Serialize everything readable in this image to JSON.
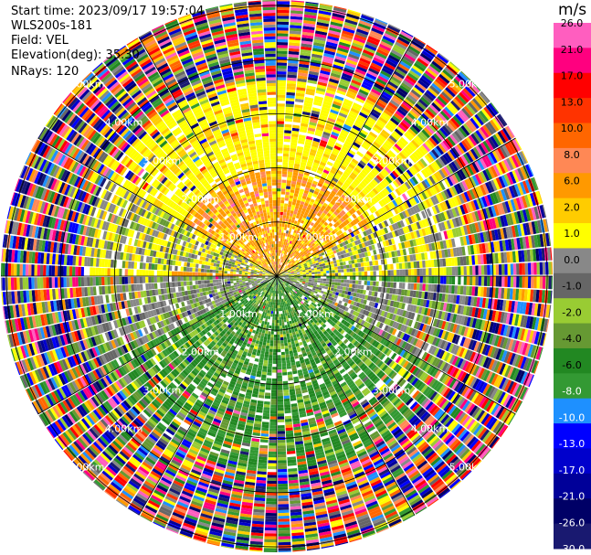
{
  "chart_data": {
    "type": "heatmap",
    "subtype": "polar-ppi",
    "info": {
      "start_time": "Start time: 2023/09/17 19:57:04",
      "instrument": "WLS200s-181",
      "field": "Field: VEL",
      "elevation": "Elevation(deg): 35.30",
      "nrays": "NRays: 120"
    },
    "range_ring_labels": [
      "1.00km",
      "2.00km",
      "3.00km",
      "4.00km",
      "5.00km"
    ],
    "range_rings_km": [
      1,
      2,
      3,
      4,
      5
    ],
    "max_range_km": 5.1,
    "colorbar": {
      "unit": "m/s",
      "ticks": [
        "26.0",
        "21.0",
        "17.0",
        "13.0",
        "10.0",
        "8.0",
        "6.0",
        "2.0",
        "1.0",
        "0.0",
        "-1.0",
        "-2.0",
        "-4.0",
        "-6.0",
        "-8.0",
        "-10.0",
        "-13.0",
        "-17.0",
        "-21.0",
        "-26.0",
        "-30.0"
      ],
      "colors": [
        "#ff5ebf",
        "#ff007f",
        "#ff0000",
        "#ff3300",
        "#ff6600",
        "#ff8855",
        "#ff9900",
        "#ffcc00",
        "#ffff00",
        "#888888",
        "#666666",
        "#99cc33",
        "#669933",
        "#228822",
        "#339933",
        "#1e90ff",
        "#0000ff",
        "#0000cc",
        "#000099",
        "#000066",
        "#191970"
      ]
    }
  }
}
